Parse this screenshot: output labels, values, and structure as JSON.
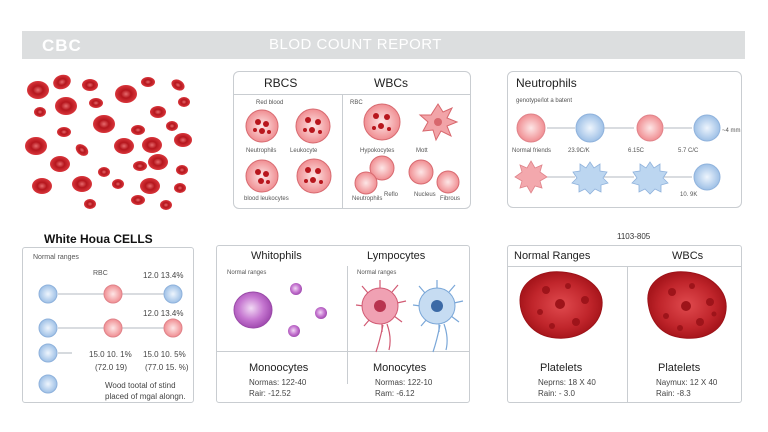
{
  "banner": {
    "left": "CBC",
    "center": "BLOD COUNT REPORT"
  },
  "panel_rbc_wbc": {
    "title_left": "RBCS",
    "title_right": "WBCs",
    "labels": [
      "Red blood",
      "Neutrophils",
      "Leukocyte",
      "blood leukocytes",
      "RBC",
      "Hypokocytes",
      "Mott",
      "Neutrophils",
      "Reflo",
      "Nucleus",
      "Fibrous"
    ]
  },
  "panel_neutrophils": {
    "title": "Neutrophils",
    "subtitle": "genotype/lot a batent",
    "labels": [
      "Normal friends",
      "23.9C/K",
      "6.15C",
      "5.7 C/C",
      "~4 mm",
      "10. 9K"
    ]
  },
  "panel_white": {
    "outside_title": "White Houa CELLS",
    "header_left": "Normal ranges",
    "rbc_label": "RBC",
    "values": [
      "12.0 13.4%",
      "12.0 13.4%",
      "15.0 10. 1%",
      "15.0 10. 5%",
      "(72.0 19)",
      "(77.0 15. %)"
    ],
    "footnote_1": "Wood tootal of stind",
    "footnote_2": "placed of mgal alongn."
  },
  "panel_whitophils": {
    "title_left": "Whitophils",
    "title_right": "Lympocytes",
    "sub_left": "Normal ranges",
    "sub_right": "Normal ranges",
    "bottom_left": {
      "name": "Monoocytes",
      "range": "Normas: 122-40",
      "rare": "Rair: -12.52"
    },
    "bottom_right": {
      "name": "Monocytes",
      "range": "Normas: 122-10",
      "rare": "Ram: -6.12"
    }
  },
  "panel_ranges": {
    "outside_label": "1103-805",
    "title_left": "Normal Ranges",
    "title_right": "WBCs",
    "bottom_left": {
      "name": "Platelets",
      "range": "Neprns: 18 X 40",
      "rare": "Rain: - 3.0"
    },
    "bottom_right": {
      "name": "Platelets",
      "range": "Naymux: 12 X 40",
      "rare": "Rain: -8.3"
    }
  },
  "colors": {
    "rbc": "#c8242b",
    "rbc_light": "#f0a3a6",
    "wbc_blue": "#b9d3ee",
    "purple": "#c77ad1",
    "border": "#c9cdd1",
    "banner": "#dcdedf"
  }
}
